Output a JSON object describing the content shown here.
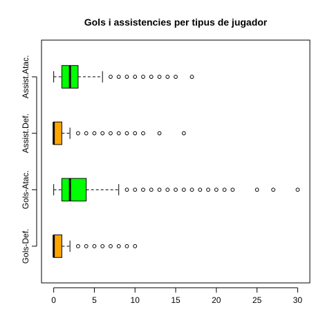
{
  "chart_data": {
    "type": "boxplot",
    "orientation": "horizontal",
    "title": "Gols i assistencies per tipus de jugador",
    "xlabel": "",
    "ylabel": "",
    "xlim": [
      -1.5,
      31.5
    ],
    "xticks": [
      0,
      5,
      10,
      15,
      20,
      25,
      30
    ],
    "grid": false,
    "groups": [
      {
        "name": "Gols-Def.",
        "color": "#FFA500",
        "whisker_low": 0,
        "q1": 0,
        "median": 0,
        "q3": 1,
        "whisker_high": 2,
        "outliers": [
          3,
          4,
          5,
          6,
          7,
          8,
          9,
          10
        ]
      },
      {
        "name": "Gols-Atac.",
        "color": "#00FF00",
        "whisker_low": 0,
        "q1": 1,
        "median": 2,
        "q3": 4,
        "whisker_high": 8,
        "outliers": [
          9,
          10,
          11,
          12,
          13,
          14,
          15,
          16,
          17,
          18,
          19,
          20,
          21,
          22,
          25,
          27,
          30
        ]
      },
      {
        "name": "Assist.Def.",
        "color": "#FFA500",
        "whisker_low": 0,
        "q1": 0,
        "median": 0,
        "q3": 1,
        "whisker_high": 2,
        "outliers": [
          3,
          4,
          5,
          6,
          7,
          8,
          9,
          10,
          11,
          13,
          16
        ]
      },
      {
        "name": "Assist.Atac.",
        "color": "#00FF00",
        "whisker_low": 0,
        "q1": 1,
        "median": 2,
        "q3": 3,
        "whisker_high": 6,
        "outliers": [
          7,
          8,
          9,
          10,
          11,
          12,
          13,
          14,
          15,
          17
        ]
      }
    ]
  }
}
